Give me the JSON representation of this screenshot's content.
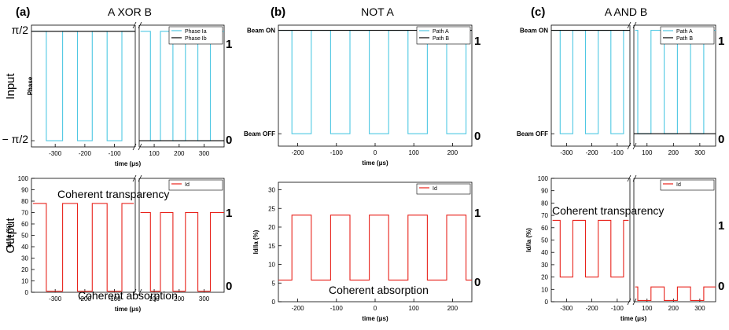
{
  "row_labels": {
    "top": "Input",
    "bottom": "Output"
  },
  "axis_break": "//",
  "colors": {
    "cyan": "#4fc8e3",
    "black": "#000000",
    "red": "#e8231c"
  },
  "chart_data": [
    {
      "type": "line",
      "panel": "(a)",
      "title": "A XOR B",
      "xlabel": "time (μs)",
      "ylabel": "Phase",
      "broken_x_axis": true,
      "xlim_left": [
        -380,
        -30
      ],
      "xlim_right": [
        40,
        380
      ],
      "xticks_left": [
        -300,
        -200,
        -100
      ],
      "xticks_right": [
        100,
        200,
        300
      ],
      "xtick_labels_left": [
        "-300",
        "-200",
        "-100"
      ],
      "xtick_labels_right": [
        "100",
        "200",
        "300"
      ],
      "ylim": [
        -1.75,
        1.75
      ],
      "ytick_values": [
        1.5708,
        -1.5708
      ],
      "ytick_labels": [
        "π/2",
        "− π/2"
      ],
      "right_labels": [
        "1",
        "0"
      ],
      "legend": {
        "position": "top-right",
        "entries": [
          {
            "name": "Phase Ia",
            "color": "#4fc8e3"
          },
          {
            "name": "Phase Ib",
            "color": "#000000"
          }
        ]
      },
      "grid": false,
      "series": [
        {
          "name": "Phase Ia",
          "color": "#4fc8e3",
          "low": -1.5708,
          "high": 1.5708,
          "start": "high",
          "left_transitions": [
            -330,
            -275,
            -225,
            -175,
            -125,
            -75
          ],
          "right_transitions": [
            85,
            125,
            175,
            225,
            275,
            325
          ]
        },
        {
          "name": "Phase Ib",
          "color": "#000000",
          "left_constant": 1.5708,
          "right_constant": -1.5708
        }
      ]
    },
    {
      "type": "line",
      "panel": "(b)",
      "title": "NOT A",
      "xlabel": "time (μs)",
      "ylabel": "",
      "broken_x_axis": false,
      "xlim": [
        -250,
        250
      ],
      "xticks": [
        -200,
        -100,
        0,
        100,
        200
      ],
      "xtick_labels": [
        "-200",
        "-100",
        "0",
        "100",
        "200"
      ],
      "ylim": [
        -0.12,
        1.05
      ],
      "ytick_values": [
        1,
        0
      ],
      "ytick_labels": [
        "Beam ON",
        "Beam OFF"
      ],
      "right_labels": [
        "1",
        "0"
      ],
      "legend": {
        "position": "top-right",
        "entries": [
          {
            "name": "Path A",
            "color": "#4fc8e3"
          },
          {
            "name": "Path B",
            "color": "#000000"
          }
        ]
      },
      "grid": false,
      "series": [
        {
          "name": "Path A",
          "color": "#4fc8e3",
          "low": 0,
          "high": 1,
          "start": "high",
          "transitions": [
            -215,
            -165,
            -115,
            -65,
            -15,
            35,
            85,
            135,
            185,
            235
          ]
        },
        {
          "name": "Path B",
          "color": "#000000",
          "constant": 1
        }
      ]
    },
    {
      "type": "line",
      "panel": "(c)",
      "title": "A AND B",
      "xlabel": "",
      "ylabel": "",
      "broken_x_axis": true,
      "xlim_left": [
        -360,
        -50
      ],
      "xlim_right": [
        50,
        360
      ],
      "xticks_left": [
        -300,
        -200,
        -100
      ],
      "xticks_right": [
        100,
        200,
        300
      ],
      "xtick_labels_left": [
        "-300",
        "-200",
        "-100"
      ],
      "xtick_labels_right": [
        "100",
        "200",
        "300"
      ],
      "ylim": [
        -0.12,
        1.05
      ],
      "ytick_values": [
        1,
        0
      ],
      "ytick_labels": [
        "Beam ON",
        "Beam OFF"
      ],
      "right_labels": [
        "1",
        "0"
      ],
      "legend": {
        "position": "top-right",
        "entries": [
          {
            "name": "Path A",
            "color": "#4fc8e3"
          },
          {
            "name": "Path B",
            "color": "#000000"
          }
        ]
      },
      "grid": false,
      "series": [
        {
          "name": "Path A",
          "color": "#4fc8e3",
          "low": 0,
          "high": 1,
          "start": "high",
          "left_transitions": [
            -325,
            -275,
            -225,
            -175,
            -125,
            -75
          ],
          "right_transitions": [
            65,
            115,
            165,
            215,
            265,
            315
          ]
        },
        {
          "name": "Path B",
          "color": "#000000",
          "left_constant": 1,
          "right_constant": 0
        }
      ]
    },
    {
      "type": "line",
      "panel": "(a)",
      "xlabel": "time (μs)",
      "ylabel": "Id/Ia (%)",
      "broken_x_axis": true,
      "xlim_left": [
        -380,
        -30
      ],
      "xlim_right": [
        40,
        380
      ],
      "xticks_left": [
        -300,
        -200,
        -100
      ],
      "xticks_right": [
        100,
        200,
        300
      ],
      "xtick_labels_left": [
        "-300",
        "-200",
        "-100"
      ],
      "xtick_labels_right": [
        "100",
        "200",
        "300"
      ],
      "ylim": [
        0,
        100
      ],
      "ytick_values": [
        0,
        10,
        20,
        30,
        40,
        50,
        60,
        70,
        80,
        90,
        100
      ],
      "ytick_labels": [
        "0",
        "10",
        "20",
        "30",
        "40",
        "50",
        "60",
        "70",
        "80",
        "90",
        "100"
      ],
      "right_labels": [
        "1",
        "0"
      ],
      "annotations": [
        "Coherent transparency",
        "Coherent absorption"
      ],
      "legend": {
        "position": "top-right",
        "entries": [
          {
            "name": "Id",
            "color": "#e8231c"
          }
        ]
      },
      "grid": false,
      "series": [
        {
          "name": "Id",
          "color": "#e8231c",
          "start": "high",
          "left_low": 1,
          "left_high": 78,
          "right_low": 1,
          "right_high": 70,
          "left_transitions": [
            -330,
            -275,
            -225,
            -175,
            -125,
            -75
          ],
          "right_transitions": [
            85,
            125,
            175,
            225,
            275,
            325
          ]
        }
      ]
    },
    {
      "type": "line",
      "panel": "(b)",
      "xlabel": "time (μs)",
      "ylabel": "Id/Ia (%)",
      "broken_x_axis": false,
      "xlim": [
        -250,
        250
      ],
      "xticks": [
        -200,
        -100,
        0,
        100,
        200
      ],
      "xtick_labels": [
        "-200",
        "-100",
        "0",
        "100",
        "200"
      ],
      "ylim": [
        0,
        32
      ],
      "ytick_values": [
        0,
        5,
        10,
        15,
        20,
        25,
        30
      ],
      "ytick_labels": [
        "0",
        "5",
        "10",
        "15",
        "20",
        "25",
        "30"
      ],
      "right_labels": [
        "1",
        "0"
      ],
      "annotations": [
        "Coherent absorption"
      ],
      "legend": {
        "position": "top-right",
        "entries": [
          {
            "name": "Id",
            "color": "#e8231c"
          }
        ]
      },
      "grid": false,
      "series": [
        {
          "name": "Id",
          "color": "#e8231c",
          "start": "low",
          "low": 5.8,
          "high": 23.2,
          "transitions": [
            -215,
            -165,
            -115,
            -65,
            -15,
            35,
            85,
            135,
            185,
            235
          ]
        }
      ]
    },
    {
      "type": "line",
      "panel": "(c)",
      "xlabel": "time (μs)",
      "ylabel": "Id/Ia (%)",
      "broken_x_axis": true,
      "xlim_left": [
        -360,
        -50
      ],
      "xlim_right": [
        50,
        360
      ],
      "xticks_left": [
        -300,
        -200,
        -100
      ],
      "xticks_right": [
        100,
        200,
        300
      ],
      "xtick_labels_left": [
        "-300",
        "-200",
        "-100"
      ],
      "xtick_labels_right": [
        "100",
        "200",
        "300"
      ],
      "ylim": [
        0,
        100
      ],
      "ytick_values": [
        0,
        10,
        20,
        30,
        40,
        50,
        60,
        70,
        80,
        90,
        100
      ],
      "ytick_labels": [
        "0",
        "10",
        "20",
        "30",
        "40",
        "50",
        "60",
        "70",
        "80",
        "90",
        "100"
      ],
      "right_labels": [
        "1",
        "0"
      ],
      "annotations": [
        "Coherent transparency"
      ],
      "legend": {
        "position": "top-right",
        "entries": [
          {
            "name": "Id",
            "color": "#e8231c"
          }
        ]
      },
      "grid": false,
      "series": [
        {
          "name": "Id",
          "color": "#e8231c",
          "start": "high",
          "left_low": 20,
          "left_high": 66,
          "right_low": 1,
          "right_high": 12,
          "left_transitions": [
            -325,
            -275,
            -225,
            -175,
            -125,
            -75
          ],
          "right_transitions": [
            65,
            115,
            165,
            215,
            265,
            315
          ]
        }
      ]
    }
  ]
}
